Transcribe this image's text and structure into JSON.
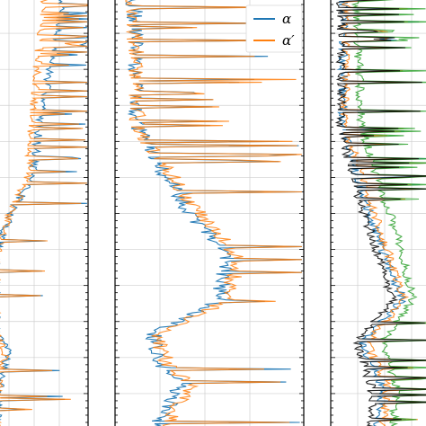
{
  "chart_data": [
    {
      "type": "line",
      "orientation": "vertical-profile",
      "grid": true,
      "legend": null,
      "series": [
        {
          "color": "#1f77b4"
        },
        {
          "color": "#ff7f0e"
        }
      ]
    },
    {
      "type": "line",
      "orientation": "vertical-profile",
      "grid": true,
      "legend": "top-right",
      "series": [
        {
          "name": "α",
          "color": "#1f77b4"
        },
        {
          "name": "α′",
          "color": "#ff7f0e"
        }
      ]
    },
    {
      "type": "line",
      "orientation": "vertical-profile",
      "grid": true,
      "legend": null,
      "series": [
        {
          "color": "#1f77b4"
        },
        {
          "color": "#ff7f0e"
        },
        {
          "color": "#2ca02c"
        },
        {
          "color": "#000000"
        }
      ]
    }
  ]
}
